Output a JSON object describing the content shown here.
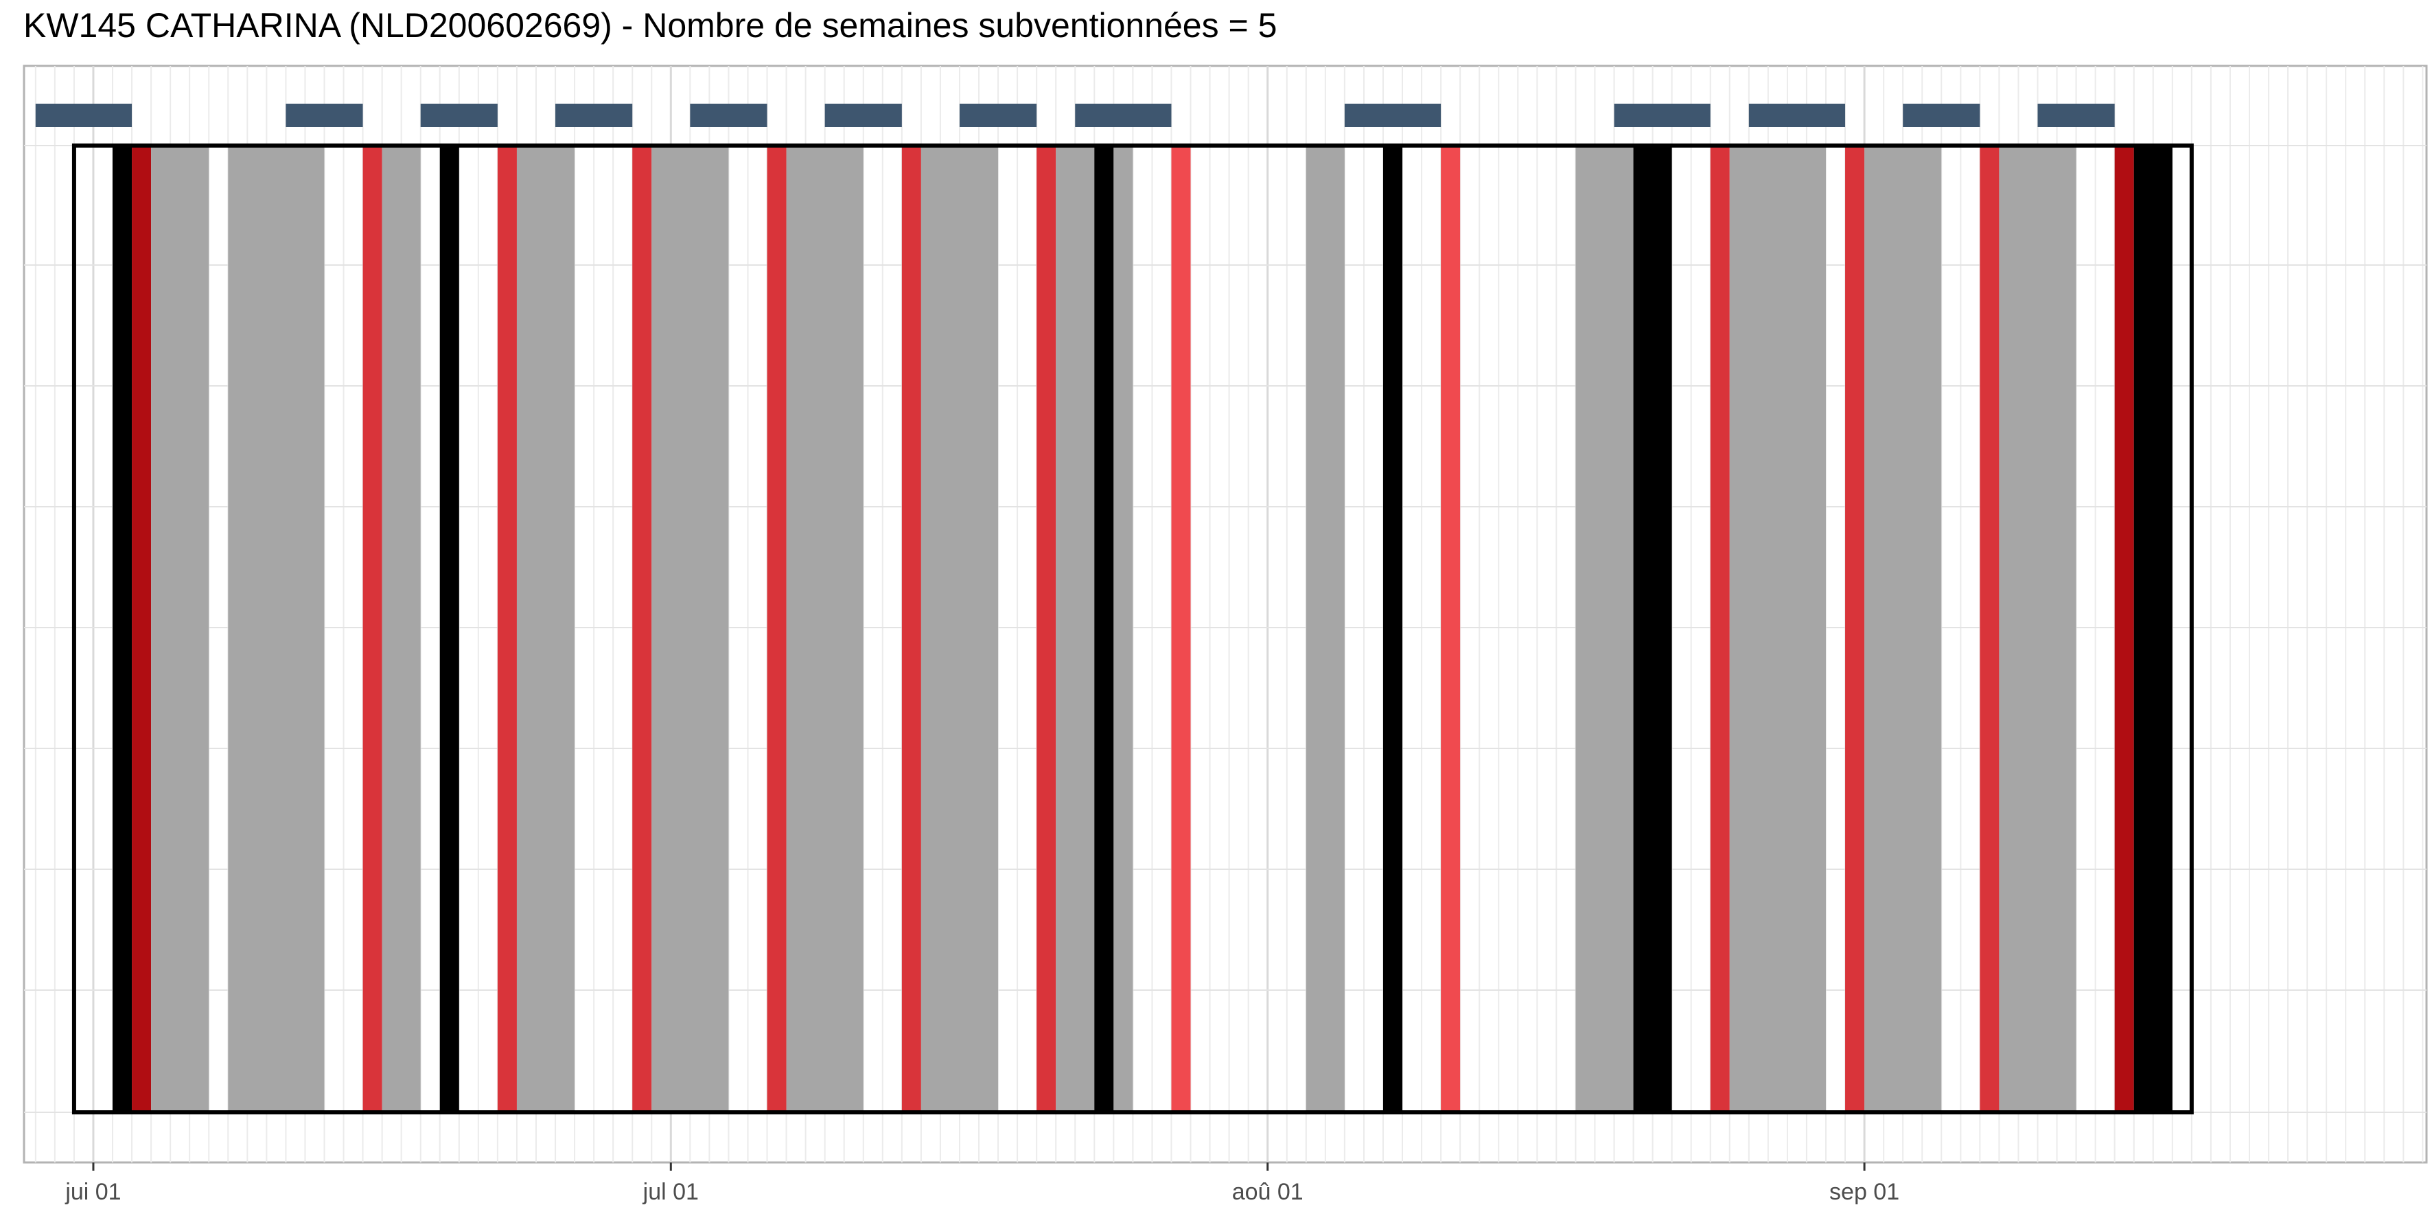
{
  "chart_data": {
    "type": "timeline",
    "title": "KW145 CATHARINA (NLD200602669) - Nombre de semaines subventionnées = 5",
    "xlabel": "",
    "ylabel": "",
    "x_axis": {
      "unit": "day_index_from_jun_01",
      "range": [
        -3.6,
        121.2
      ],
      "ticks": [
        {
          "label": "jui 01",
          "value": 0
        },
        {
          "label": "jul 01",
          "value": 30
        },
        {
          "label": "aoû 01",
          "value": 61
        },
        {
          "label": "sep 01",
          "value": 92
        }
      ]
    },
    "grid": true,
    "period_box": {
      "start": -1,
      "end": 109
    },
    "colors": {
      "gray": "#a6a6a6",
      "red": "#d9343a",
      "light_red": "#f04a4f",
      "dark_red": "#b00d12",
      "black": "#000000",
      "week_marker": "#3e566f"
    },
    "bands": [
      {
        "start": 1,
        "end": 2,
        "color": "black"
      },
      {
        "start": 2,
        "end": 3,
        "color": "dark_red"
      },
      {
        "start": 3,
        "end": 6,
        "color": "gray"
      },
      {
        "start": 7,
        "end": 12,
        "color": "gray"
      },
      {
        "start": 14,
        "end": 15,
        "color": "red"
      },
      {
        "start": 15,
        "end": 17,
        "color": "gray"
      },
      {
        "start": 18,
        "end": 19,
        "color": "black"
      },
      {
        "start": 21,
        "end": 22,
        "color": "red"
      },
      {
        "start": 22,
        "end": 25,
        "color": "gray"
      },
      {
        "start": 28,
        "end": 29,
        "color": "red"
      },
      {
        "start": 29,
        "end": 33,
        "color": "gray"
      },
      {
        "start": 35,
        "end": 36,
        "color": "red"
      },
      {
        "start": 36,
        "end": 40,
        "color": "gray"
      },
      {
        "start": 42,
        "end": 43,
        "color": "red"
      },
      {
        "start": 43,
        "end": 47,
        "color": "gray"
      },
      {
        "start": 49,
        "end": 50,
        "color": "red"
      },
      {
        "start": 50,
        "end": 52,
        "color": "gray"
      },
      {
        "start": 52,
        "end": 53,
        "color": "black"
      },
      {
        "start": 53,
        "end": 54,
        "color": "gray"
      },
      {
        "start": 56,
        "end": 57,
        "color": "light_red"
      },
      {
        "start": 63,
        "end": 65,
        "color": "gray"
      },
      {
        "start": 67,
        "end": 68,
        "color": "black"
      },
      {
        "start": 70,
        "end": 71,
        "color": "light_red"
      },
      {
        "start": 77,
        "end": 80,
        "color": "gray"
      },
      {
        "start": 80,
        "end": 82,
        "color": "black"
      },
      {
        "start": 84,
        "end": 85,
        "color": "red"
      },
      {
        "start": 85,
        "end": 90,
        "color": "gray"
      },
      {
        "start": 91,
        "end": 92,
        "color": "red"
      },
      {
        "start": 92,
        "end": 96,
        "color": "gray"
      },
      {
        "start": 98,
        "end": 99,
        "color": "red"
      },
      {
        "start": 99,
        "end": 103,
        "color": "gray"
      },
      {
        "start": 105,
        "end": 106,
        "color": "dark_red"
      },
      {
        "start": 106,
        "end": 108,
        "color": "black"
      }
    ],
    "week_markers": [
      {
        "start": -3,
        "end": 2
      },
      {
        "start": 10,
        "end": 14
      },
      {
        "start": 17,
        "end": 21
      },
      {
        "start": 24,
        "end": 28
      },
      {
        "start": 31,
        "end": 35
      },
      {
        "start": 38,
        "end": 42
      },
      {
        "start": 45,
        "end": 49
      },
      {
        "start": 51,
        "end": 56
      },
      {
        "start": 65,
        "end": 70
      },
      {
        "start": 79,
        "end": 84
      },
      {
        "start": 86,
        "end": 91
      },
      {
        "start": 94,
        "end": 98
      },
      {
        "start": 101,
        "end": 105
      }
    ]
  }
}
